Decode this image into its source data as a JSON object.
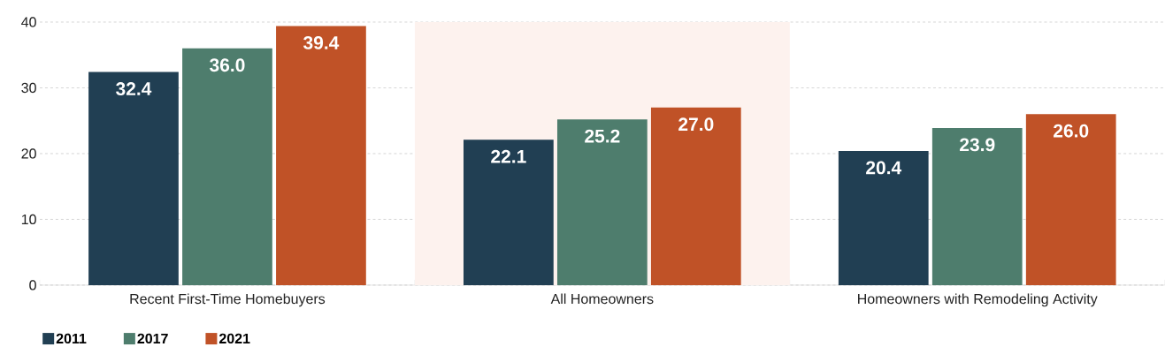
{
  "chart_data": {
    "type": "bar",
    "categories": [
      "Recent First-Time Homebuyers",
      "All Homeowners",
      "Homeowners with Remodeling Activity"
    ],
    "series": [
      {
        "name": "2011",
        "color": "#213f53",
        "values": [
          32.4,
          22.1,
          20.4
        ],
        "value_labels": [
          "32.4",
          "22.1",
          "20.4"
        ]
      },
      {
        "name": "2017",
        "color": "#4e7d6d",
        "values": [
          36.0,
          25.2,
          23.9
        ],
        "value_labels": [
          "36.0",
          "25.2",
          "23.9"
        ]
      },
      {
        "name": "2021",
        "color": "#c05227",
        "values": [
          39.4,
          27.0,
          26.0
        ],
        "value_labels": [
          "39.4",
          "27.0",
          "26.0"
        ]
      }
    ],
    "ylim": [
      0,
      40
    ],
    "yticks": [
      0,
      10,
      20,
      30,
      40
    ],
    "grid": "y",
    "legend": "bottom left",
    "bands": [
      {
        "axis": "x",
        "from": "All Homeowners",
        "to": "All Homeowners",
        "color": "#fdf2ee"
      }
    ]
  }
}
